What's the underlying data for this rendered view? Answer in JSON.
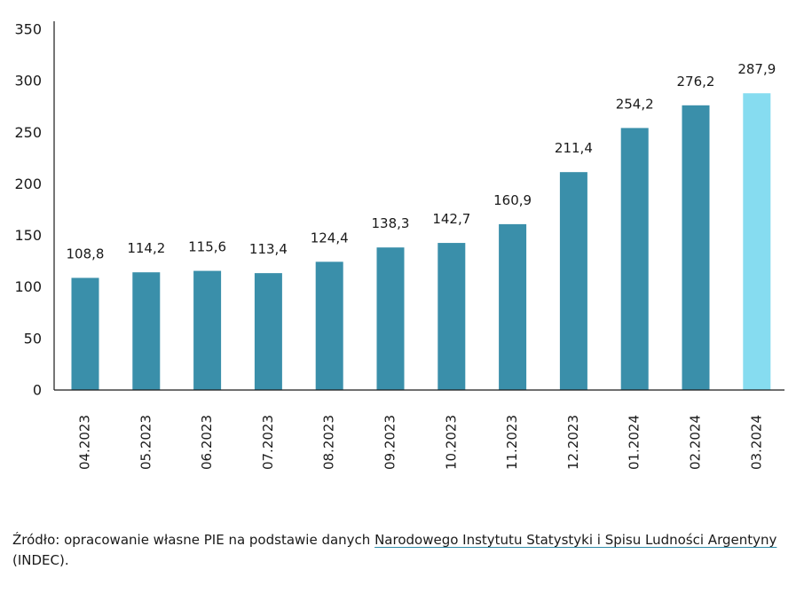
{
  "chart_data": {
    "type": "bar",
    "categories": [
      "04.2023",
      "05.2023",
      "06.2023",
      "07.2023",
      "08.2023",
      "09.2023",
      "10.2023",
      "11.2023",
      "12.2023",
      "01.2024",
      "02.2024",
      "03.2024"
    ],
    "values": [
      108.8,
      114.2,
      115.6,
      113.4,
      124.4,
      138.3,
      142.7,
      160.9,
      211.4,
      254.2,
      276.2,
      287.9
    ],
    "value_labels": [
      "108,8",
      "114,2",
      "115,6",
      "113,4",
      "124,4",
      "138,3",
      "142,7",
      "160,9",
      "211,4",
      "254,2",
      "276,2",
      "287,9"
    ],
    "y_ticks": [
      "0",
      "50",
      "100",
      "150",
      "200",
      "250",
      "300",
      "350"
    ],
    "ylim": [
      0,
      350
    ],
    "title": "",
    "xlabel": "",
    "ylabel": "",
    "grid": false,
    "colors": {
      "bar": "#3a8faa",
      "highlight": "#86dcf0",
      "axis": "#1a1a1a"
    },
    "highlight_index": 11
  },
  "source": {
    "prefix": "Źródło: opracowanie własne PIE na podstawie danych ",
    "link_text": "Narodowego Instytutu Statystyki i Spisu Ludności Argentyny",
    "suffix": " (INDEC)."
  }
}
